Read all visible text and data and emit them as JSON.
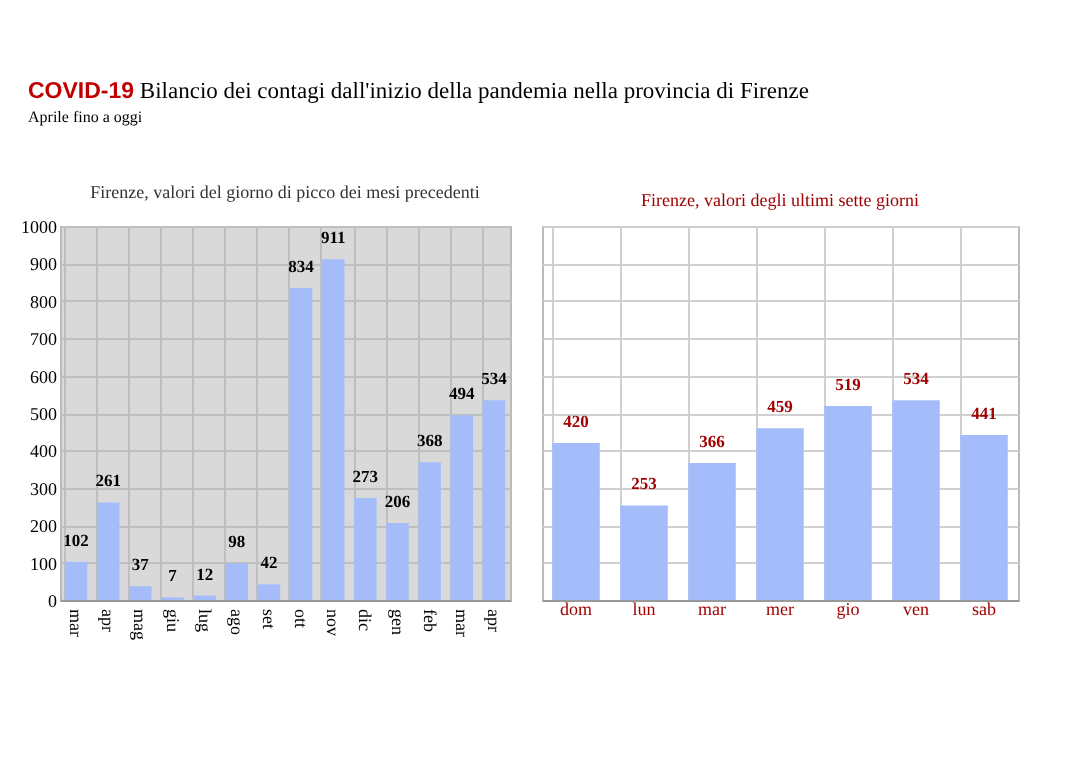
{
  "chart_data": [
    {
      "type": "bar",
      "title": "Firenze, valori del giorno di picco dei mesi precedenti",
      "annotations": [
        "COVID-19 Bilancio dei contagi dall'inizio della pandemia nella provincia di Firenze",
        "Aprile fino a oggi"
      ],
      "categories": [
        "mar",
        "apr",
        "mag",
        "giu",
        "lug",
        "ago",
        "set",
        "ott",
        "nov",
        "dic",
        "gen",
        "feb",
        "mar",
        "apr"
      ],
      "values": [
        102,
        261,
        37,
        7,
        12,
        98,
        42,
        834,
        911,
        273,
        206,
        368,
        494,
        534
      ],
      "color": "#a4bdfa",
      "ylim": [
        0,
        1000
      ],
      "yticks": [
        0,
        100,
        200,
        300,
        400,
        500,
        600,
        700,
        800,
        900,
        1000
      ],
      "grid": true,
      "data_labels": true
    },
    {
      "type": "bar",
      "title": "Firenze, valori degli ultimi sette giorni",
      "categories": [
        "dom",
        "lun",
        "mar",
        "mer",
        "gio",
        "ven",
        "sab"
      ],
      "values": [
        420,
        253,
        366,
        459,
        519,
        534,
        441
      ],
      "color": "#a4bdfa",
      "ylim": [
        0,
        1000
      ],
      "yticks": [
        {
          "value": 0,
          "label": null
        },
        {
          "value": 100,
          "label": null
        },
        {
          "value": 200,
          "label": null
        },
        {
          "value": 300,
          "label": null
        },
        {
          "value": 400,
          "label": null
        },
        {
          "value": 500,
          "label": null
        },
        {
          "value": 600,
          "label": null
        },
        {
          "value": 700,
          "label": null
        },
        {
          "value": 800,
          "label": null
        },
        {
          "value": 900,
          "label": null
        },
        {
          "value": 1000,
          "label": null
        }
      ],
      "grid": true,
      "data_labels": true,
      "tick_labels": "x"
    }
  ]
}
